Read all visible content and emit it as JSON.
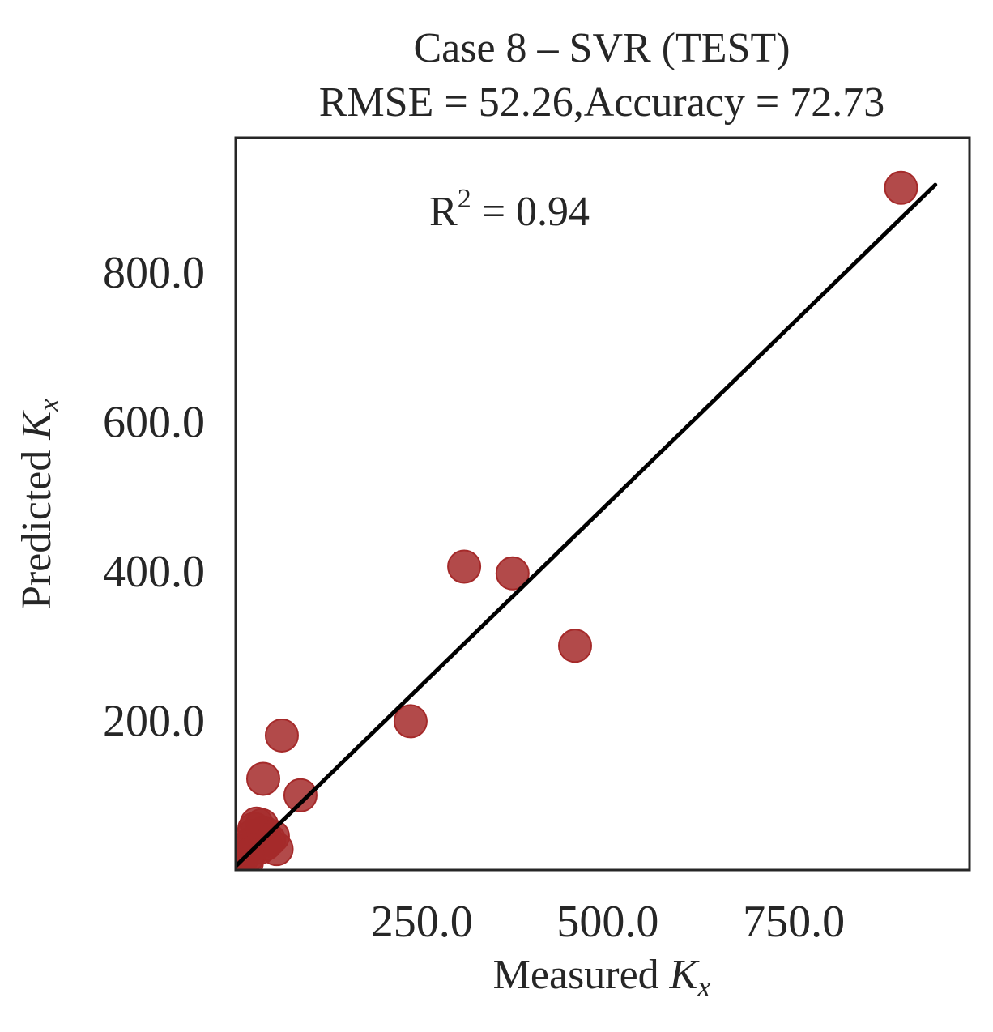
{
  "chart_data": {
    "type": "scatter",
    "title": "Case 8 – SVR (TEST)",
    "subtitle": "RMSE = 52.26,Accuracy = 72.73",
    "xlabel": {
      "prefix": "Measured ",
      "var": "K",
      "sub": "x"
    },
    "ylabel": {
      "prefix": "Predicted ",
      "var": "K",
      "sub": "x"
    },
    "annotation": {
      "base": "R",
      "sup": "2",
      "rest": " = 0.94"
    },
    "xlim": [
      0,
      986
    ],
    "ylim": [
      0,
      980
    ],
    "xticks": [
      {
        "value": 250,
        "label": "250.0"
      },
      {
        "value": 500,
        "label": "500.0"
      },
      {
        "value": 750,
        "label": "750.0"
      }
    ],
    "yticks": [
      {
        "value": 200,
        "label": "200.0"
      },
      {
        "value": 400,
        "label": "400.0"
      },
      {
        "value": 600,
        "label": "600.0"
      },
      {
        "value": 800,
        "label": "800.0"
      }
    ],
    "points": [
      {
        "x": 3,
        "y": 5
      },
      {
        "x": 8,
        "y": 15
      },
      {
        "x": 12,
        "y": 25
      },
      {
        "x": 15,
        "y": 10
      },
      {
        "x": 20,
        "y": 35
      },
      {
        "x": 22,
        "y": 45
      },
      {
        "x": 25,
        "y": 55
      },
      {
        "x": 28,
        "y": 62
      },
      {
        "x": 30,
        "y": 40
      },
      {
        "x": 33,
        "y": 30
      },
      {
        "x": 35,
        "y": 60
      },
      {
        "x": 38,
        "y": 50
      },
      {
        "x": 40,
        "y": 35
      },
      {
        "x": 45,
        "y": 40
      },
      {
        "x": 50,
        "y": 45
      },
      {
        "x": 55,
        "y": 28
      },
      {
        "x": 18,
        "y": 20
      },
      {
        "x": 37,
        "y": 122
      },
      {
        "x": 62,
        "y": 180
      },
      {
        "x": 87,
        "y": 100
      },
      {
        "x": 235,
        "y": 199
      },
      {
        "x": 307,
        "y": 406
      },
      {
        "x": 372,
        "y": 397
      },
      {
        "x": 456,
        "y": 300
      },
      {
        "x": 894,
        "y": 913
      }
    ],
    "fit_line": {
      "x": [
        0,
        940
      ],
      "y": [
        5,
        917
      ]
    },
    "point_color": "#a52a2a",
    "line_color": "#000000",
    "grid": false
  }
}
